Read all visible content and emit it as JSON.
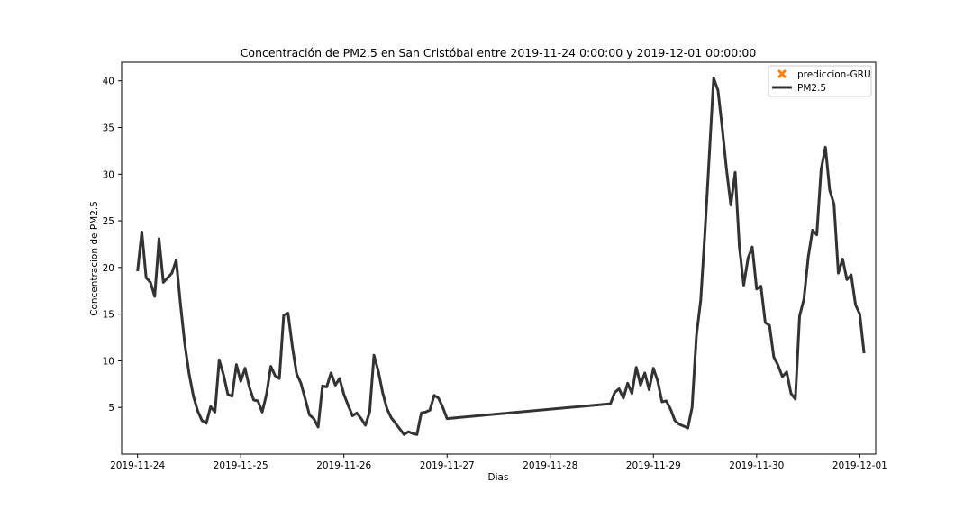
{
  "chart_data": {
    "type": "line",
    "title": "Concentración de PM2.5 en San Cristóbal entre 2019-11-24 0:00:00 y 2019-12-01 00:00:00",
    "xlabel": "Dias",
    "ylabel": "Concentracion de PM2.5",
    "xlim": [
      "2019-11-23 20:18",
      "2019-12-01 03:42"
    ],
    "ylim": [
      0,
      42
    ],
    "x_ticks": [
      "2019-11-24",
      "2019-11-25",
      "2019-11-26",
      "2019-11-27",
      "2019-11-28",
      "2019-11-29",
      "2019-11-30",
      "2019-12-01"
    ],
    "y_ticks": [
      5,
      10,
      15,
      20,
      25,
      30,
      35,
      40
    ],
    "grid": false,
    "legend": {
      "placement": "top-right",
      "entries": [
        {
          "label": "prediccion-GRU",
          "marker": "x-marker",
          "color": "#ff7f0e"
        },
        {
          "label": "PM2.5",
          "marker": "line",
          "color": "#333333"
        }
      ]
    },
    "series": [
      {
        "name": "PM2.5",
        "color": "#333333",
        "points": [
          [
            "2019-11-24 00:00",
            19.6
          ],
          [
            "2019-11-24 01:00",
            23.8
          ],
          [
            "2019-11-24 02:00",
            18.9
          ],
          [
            "2019-11-24 03:00",
            18.4
          ],
          [
            "2019-11-24 04:00",
            16.9
          ],
          [
            "2019-11-24 05:00",
            23.1
          ],
          [
            "2019-11-24 06:00",
            18.4
          ],
          [
            "2019-11-24 07:00",
            18.9
          ],
          [
            "2019-11-24 08:00",
            19.4
          ],
          [
            "2019-11-24 09:00",
            20.8
          ],
          [
            "2019-11-24 10:00",
            16.0
          ],
          [
            "2019-11-24 11:00",
            11.8
          ],
          [
            "2019-11-24 12:00",
            8.6
          ],
          [
            "2019-11-24 13:00",
            6.2
          ],
          [
            "2019-11-24 14:00",
            4.6
          ],
          [
            "2019-11-24 15:00",
            3.6
          ],
          [
            "2019-11-24 16:00",
            3.3
          ],
          [
            "2019-11-24 17:00",
            5.1
          ],
          [
            "2019-11-24 18:00",
            4.5
          ],
          [
            "2019-11-24 19:00",
            10.1
          ],
          [
            "2019-11-24 20:00",
            8.5
          ],
          [
            "2019-11-24 21:00",
            6.4
          ],
          [
            "2019-11-24 22:00",
            6.2
          ],
          [
            "2019-11-24 23:00",
            9.6
          ],
          [
            "2019-11-25 00:00",
            7.8
          ],
          [
            "2019-11-25 01:00",
            9.2
          ],
          [
            "2019-11-25 02:00",
            7.2
          ],
          [
            "2019-11-25 03:00",
            5.8
          ],
          [
            "2019-11-25 04:00",
            5.7
          ],
          [
            "2019-11-25 05:00",
            4.5
          ],
          [
            "2019-11-25 06:00",
            6.4
          ],
          [
            "2019-11-25 07:00",
            9.4
          ],
          [
            "2019-11-25 08:00",
            8.4
          ],
          [
            "2019-11-25 09:00",
            8.1
          ],
          [
            "2019-11-25 10:00",
            14.9
          ],
          [
            "2019-11-25 11:00",
            15.1
          ],
          [
            "2019-11-25 12:00",
            11.6
          ],
          [
            "2019-11-25 13:00",
            8.6
          ],
          [
            "2019-11-25 14:00",
            7.6
          ],
          [
            "2019-11-25 15:00",
            5.9
          ],
          [
            "2019-11-25 16:00",
            4.2
          ],
          [
            "2019-11-25 17:00",
            3.8
          ],
          [
            "2019-11-25 18:00",
            2.9
          ],
          [
            "2019-11-25 19:00",
            7.3
          ],
          [
            "2019-11-25 20:00",
            7.2
          ],
          [
            "2019-11-25 21:00",
            8.7
          ],
          [
            "2019-11-25 22:00",
            7.4
          ],
          [
            "2019-11-25 23:00",
            8.1
          ],
          [
            "2019-11-26 00:00",
            6.4
          ],
          [
            "2019-11-26 01:00",
            5.2
          ],
          [
            "2019-11-26 02:00",
            4.1
          ],
          [
            "2019-11-26 03:00",
            4.4
          ],
          [
            "2019-11-26 04:00",
            3.8
          ],
          [
            "2019-11-26 05:00",
            3.1
          ],
          [
            "2019-11-26 06:00",
            4.5
          ],
          [
            "2019-11-26 07:00",
            10.6
          ],
          [
            "2019-11-26 08:00",
            8.9
          ],
          [
            "2019-11-26 09:00",
            6.6
          ],
          [
            "2019-11-26 10:00",
            4.9
          ],
          [
            "2019-11-26 11:00",
            3.9
          ],
          [
            "2019-11-26 12:00",
            3.3
          ],
          [
            "2019-11-26 13:00",
            2.7
          ],
          [
            "2019-11-26 14:00",
            2.1
          ],
          [
            "2019-11-26 15:00",
            2.4
          ],
          [
            "2019-11-26 16:00",
            2.2
          ],
          [
            "2019-11-26 17:00",
            2.1
          ],
          [
            "2019-11-26 18:00",
            4.4
          ],
          [
            "2019-11-26 19:00",
            4.5
          ],
          [
            "2019-11-26 20:00",
            4.7
          ],
          [
            "2019-11-26 21:00",
            6.3
          ],
          [
            "2019-11-26 22:00",
            6.0
          ],
          [
            "2019-11-26 23:00",
            5.0
          ],
          [
            "2019-11-27 00:00",
            3.8
          ],
          [
            "2019-11-28 14:00",
            5.4
          ],
          [
            "2019-11-28 15:00",
            6.6
          ],
          [
            "2019-11-28 16:00",
            7.0
          ],
          [
            "2019-11-28 17:00",
            6.0
          ],
          [
            "2019-11-28 18:00",
            7.6
          ],
          [
            "2019-11-28 19:00",
            6.5
          ],
          [
            "2019-11-28 20:00",
            9.3
          ],
          [
            "2019-11-28 21:00",
            7.4
          ],
          [
            "2019-11-28 22:00",
            8.7
          ],
          [
            "2019-11-28 23:00",
            6.9
          ],
          [
            "2019-11-29 00:00",
            9.2
          ],
          [
            "2019-11-29 01:00",
            7.8
          ],
          [
            "2019-11-29 02:00",
            5.6
          ],
          [
            "2019-11-29 03:00",
            5.7
          ],
          [
            "2019-11-29 04:00",
            4.8
          ],
          [
            "2019-11-29 05:00",
            3.6
          ],
          [
            "2019-11-29 06:00",
            3.2
          ],
          [
            "2019-11-29 07:00",
            3.0
          ],
          [
            "2019-11-29 08:00",
            2.8
          ],
          [
            "2019-11-29 09:00",
            5.0
          ],
          [
            "2019-11-29 10:00",
            12.7
          ],
          [
            "2019-11-29 11:00",
            16.5
          ],
          [
            "2019-11-29 12:00",
            24.0
          ],
          [
            "2019-11-29 13:00",
            32.0
          ],
          [
            "2019-11-29 14:00",
            40.3
          ],
          [
            "2019-11-29 15:00",
            39.0
          ],
          [
            "2019-11-29 16:00",
            35.0
          ],
          [
            "2019-11-29 17:00",
            30.5
          ],
          [
            "2019-11-29 18:00",
            26.7
          ],
          [
            "2019-11-29 19:00",
            30.2
          ],
          [
            "2019-11-29 20:00",
            22.2
          ],
          [
            "2019-11-29 21:00",
            18.1
          ],
          [
            "2019-11-29 22:00",
            21.0
          ],
          [
            "2019-11-29 23:00",
            22.2
          ],
          [
            "2019-11-30 00:00",
            17.7
          ],
          [
            "2019-11-30 01:00",
            18.0
          ],
          [
            "2019-11-30 02:00",
            14.1
          ],
          [
            "2019-11-30 03:00",
            13.8
          ],
          [
            "2019-11-30 04:00",
            10.4
          ],
          [
            "2019-11-30 05:00",
            9.5
          ],
          [
            "2019-11-30 06:00",
            8.3
          ],
          [
            "2019-11-30 07:00",
            8.8
          ],
          [
            "2019-11-30 08:00",
            6.5
          ],
          [
            "2019-11-30 09:00",
            5.9
          ],
          [
            "2019-11-30 10:00",
            14.8
          ],
          [
            "2019-11-30 11:00",
            16.6
          ],
          [
            "2019-11-30 12:00",
            21.1
          ],
          [
            "2019-11-30 13:00",
            24.0
          ],
          [
            "2019-11-30 14:00",
            23.5
          ],
          [
            "2019-11-30 15:00",
            30.5
          ],
          [
            "2019-11-30 16:00",
            32.9
          ],
          [
            "2019-11-30 17:00",
            28.3
          ],
          [
            "2019-11-30 18:00",
            26.8
          ],
          [
            "2019-11-30 19:00",
            19.4
          ],
          [
            "2019-11-30 20:00",
            20.9
          ],
          [
            "2019-11-30 21:00",
            18.7
          ],
          [
            "2019-11-30 22:00",
            19.2
          ],
          [
            "2019-11-30 23:00",
            16.0
          ],
          [
            "2019-12-01 00:00",
            15.0
          ],
          [
            "2019-12-01 01:00",
            10.8
          ]
        ]
      }
    ]
  }
}
